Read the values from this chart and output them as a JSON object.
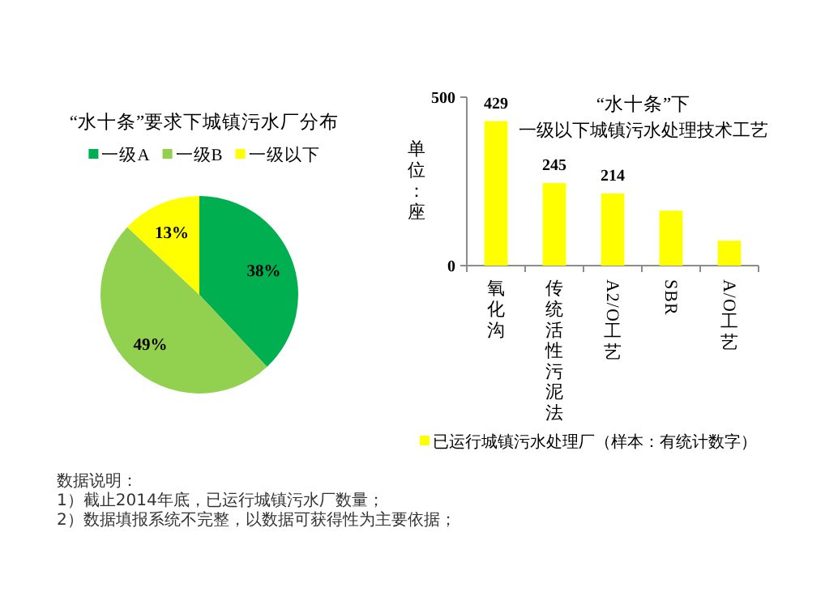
{
  "chart_data": [
    {
      "type": "pie",
      "title": "“水十条”要求下城镇污水厂分布",
      "categories": [
        "一级A",
        "一级B",
        "一级以下"
      ],
      "values": [
        38,
        49,
        13
      ],
      "colors": [
        "#00b050",
        "#92d050",
        "#ffff00"
      ],
      "value_labels": [
        "38%",
        "49%",
        "13%"
      ],
      "legend": "top",
      "annotations": [
        "数据说明：",
        "1）截止2014年底，已运行城镇污水厂数量；",
        "2）数据填报系统不完整，以数据可获得性为主要依据；"
      ]
    },
    {
      "type": "bar",
      "title": "“水十条”下",
      "subtitle": "一级以下城镇污水处理技术工艺",
      "ylabel": "单位：座",
      "categories": [
        "氧化沟",
        "传统活性污泥法",
        "A2/O工艺",
        "SBR",
        "A/O工艺"
      ],
      "series": [
        {
          "name": "已运行城镇污水处理厂（样本：有统计数字）",
          "color": "#ffff00",
          "values": [
            429,
            245,
            214,
            163,
            74
          ],
          "value_labels": [
            "429",
            "245",
            "214",
            null,
            null
          ]
        }
      ],
      "ylim": [
        0,
        500
      ],
      "yticks": [
        0,
        500
      ],
      "legend": "bottom"
    }
  ]
}
